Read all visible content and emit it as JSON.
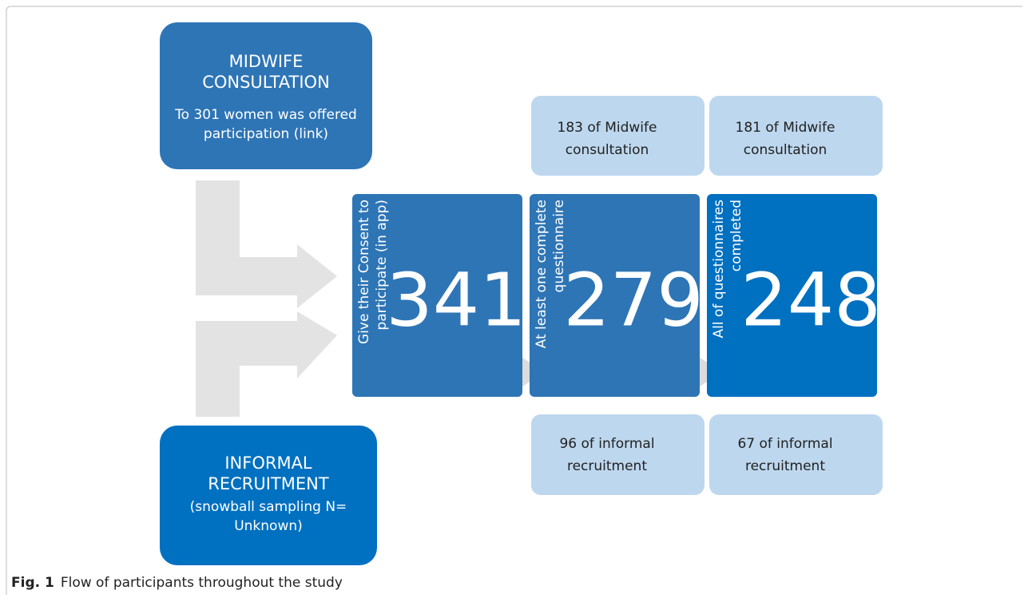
{
  "sources": [
    {
      "title": [
        "MIDWIFE",
        "CONSULTATION"
      ],
      "text": [
        "To 301 women was offered",
        "participation (link)"
      ]
    },
    {
      "title": [
        "INFORMAL",
        "RECRUITMENT"
      ],
      "text": [
        "(snowball sampling N=",
        "Unknown)"
      ]
    }
  ],
  "stages": [
    {
      "label": [
        "Give their Consent to",
        "participate (in app)"
      ],
      "number": "341",
      "top": [
        "",
        ""
      ],
      "bottom": [
        "",
        ""
      ]
    },
    {
      "label": [
        "At least one complete",
        "questionnaire"
      ],
      "number": "279",
      "top": [
        "183 of Midwife",
        "consultation"
      ],
      "bottom": [
        "96 of informal",
        "recruitment"
      ]
    },
    {
      "label": [
        "All of questionnaires",
        "completed"
      ],
      "number": "248",
      "top": [
        "181 of Midwife",
        "consultation"
      ],
      "bottom": [
        "67 of informal",
        "recruitment"
      ]
    }
  ],
  "caption": {
    "label": "Fig. 1",
    "text": "Flow of participants throughout the study"
  }
}
